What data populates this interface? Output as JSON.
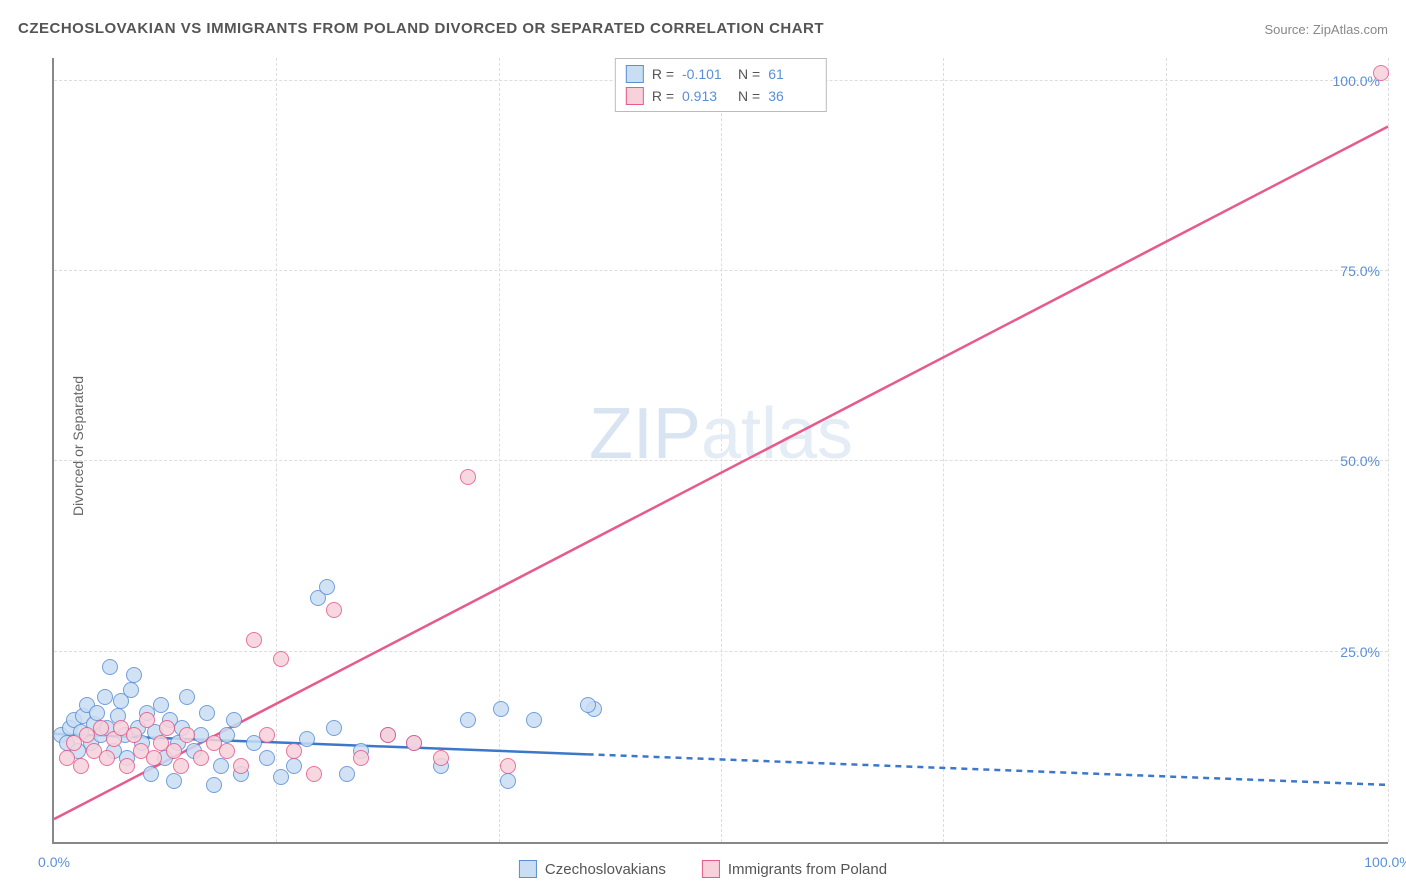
{
  "title": "CZECHOSLOVAKIAN VS IMMIGRANTS FROM POLAND DIVORCED OR SEPARATED CORRELATION CHART",
  "source": "Source: ZipAtlas.com",
  "y_axis_label": "Divorced or Separated",
  "watermark": {
    "bold": "ZIP",
    "light": "atlas"
  },
  "chart": {
    "type": "scatter",
    "xlim": [
      0,
      100
    ],
    "ylim": [
      0,
      103
    ],
    "x_ticks": [
      0,
      100
    ],
    "x_tick_labels": [
      "0.0%",
      "100.0%"
    ],
    "y_ticks": [
      25,
      50,
      75,
      100
    ],
    "y_tick_labels": [
      "25.0%",
      "50.0%",
      "75.0%",
      "100.0%"
    ],
    "v_gridlines": [
      0,
      16.67,
      33.33,
      50,
      66.67,
      83.33,
      100
    ],
    "background_color": "#ffffff",
    "grid_color": "#dddddd",
    "axis_color": "#888888",
    "point_radius": 8,
    "point_stroke_width": 1.5,
    "watermark_color": "#d8e4f2"
  },
  "series": [
    {
      "id": "czech",
      "label": "Czechoslovakians",
      "fill": "#c9ddf3",
      "stroke": "#5b8fd6",
      "R": "-0.101",
      "N": "61",
      "trend": {
        "x1": 0,
        "y1": 14.2,
        "x2": 100,
        "y2": 7.5,
        "solid_until_x": 40,
        "color": "#3b78c9",
        "width": 2.5,
        "dash": "6,5"
      },
      "points": [
        [
          0.5,
          14
        ],
        [
          1,
          13
        ],
        [
          1.2,
          15
        ],
        [
          1.5,
          16
        ],
        [
          1.8,
          12
        ],
        [
          2,
          14.5
        ],
        [
          2.2,
          16.5
        ],
        [
          2.5,
          18
        ],
        [
          2.8,
          13
        ],
        [
          3,
          15.5
        ],
        [
          3.2,
          17
        ],
        [
          3.5,
          14
        ],
        [
          3.8,
          19
        ],
        [
          4,
          15
        ],
        [
          4.2,
          23
        ],
        [
          4.5,
          12
        ],
        [
          4.8,
          16.5
        ],
        [
          5,
          18.5
        ],
        [
          5.3,
          14
        ],
        [
          5.5,
          11
        ],
        [
          5.8,
          20
        ],
        [
          6,
          22
        ],
        [
          6.3,
          15
        ],
        [
          6.6,
          13
        ],
        [
          7,
          17
        ],
        [
          7.3,
          9
        ],
        [
          7.6,
          14.5
        ],
        [
          8,
          18
        ],
        [
          8.3,
          11
        ],
        [
          8.7,
          16
        ],
        [
          9,
          8
        ],
        [
          9.3,
          13
        ],
        [
          9.6,
          15
        ],
        [
          10,
          19
        ],
        [
          10.5,
          12
        ],
        [
          11,
          14
        ],
        [
          11.5,
          17
        ],
        [
          12,
          7.5
        ],
        [
          12.5,
          10
        ],
        [
          13,
          14
        ],
        [
          13.5,
          16
        ],
        [
          14,
          9
        ],
        [
          15,
          13
        ],
        [
          16,
          11
        ],
        [
          17,
          8.5
        ],
        [
          18,
          10
        ],
        [
          19,
          13.5
        ],
        [
          19.8,
          32
        ],
        [
          20.5,
          33.5
        ],
        [
          21,
          15
        ],
        [
          22,
          9
        ],
        [
          23,
          12
        ],
        [
          25,
          14
        ],
        [
          27,
          13
        ],
        [
          29,
          10
        ],
        [
          31,
          16
        ],
        [
          33.5,
          17.5
        ],
        [
          34,
          8
        ],
        [
          36,
          16
        ],
        [
          40.5,
          17.5
        ],
        [
          40,
          18
        ]
      ]
    },
    {
      "id": "poland",
      "label": "Immigrants from Poland",
      "fill": "#f7d2db",
      "stroke": "#e75a8c",
      "R": "0.913",
      "N": "36",
      "trend": {
        "x1": 0,
        "y1": 3,
        "x2": 100,
        "y2": 94,
        "solid_until_x": 100,
        "color": "#e75a8c",
        "width": 2.5,
        "dash": ""
      },
      "points": [
        [
          1,
          11
        ],
        [
          1.5,
          13
        ],
        [
          2,
          10
        ],
        [
          2.5,
          14
        ],
        [
          3,
          12
        ],
        [
          3.5,
          15
        ],
        [
          4,
          11
        ],
        [
          4.5,
          13.5
        ],
        [
          5,
          15
        ],
        [
          5.5,
          10
        ],
        [
          6,
          14
        ],
        [
          6.5,
          12
        ],
        [
          7,
          16
        ],
        [
          7.5,
          11
        ],
        [
          8,
          13
        ],
        [
          8.5,
          15
        ],
        [
          9,
          12
        ],
        [
          9.5,
          10
        ],
        [
          10,
          14
        ],
        [
          11,
          11
        ],
        [
          12,
          13
        ],
        [
          13,
          12
        ],
        [
          14,
          10
        ],
        [
          15,
          26.5
        ],
        [
          16,
          14
        ],
        [
          17,
          24
        ],
        [
          18,
          12
        ],
        [
          19.5,
          9
        ],
        [
          21,
          30.5
        ],
        [
          23,
          11
        ],
        [
          25,
          14
        ],
        [
          27,
          13
        ],
        [
          29,
          11
        ],
        [
          31,
          48
        ],
        [
          99.5,
          101
        ],
        [
          34,
          10
        ]
      ]
    }
  ],
  "stats_box": {
    "r_label": "R =",
    "n_label": "N ="
  },
  "legend": {
    "items": [
      "Czechoslovakians",
      "Immigrants from Poland"
    ]
  }
}
